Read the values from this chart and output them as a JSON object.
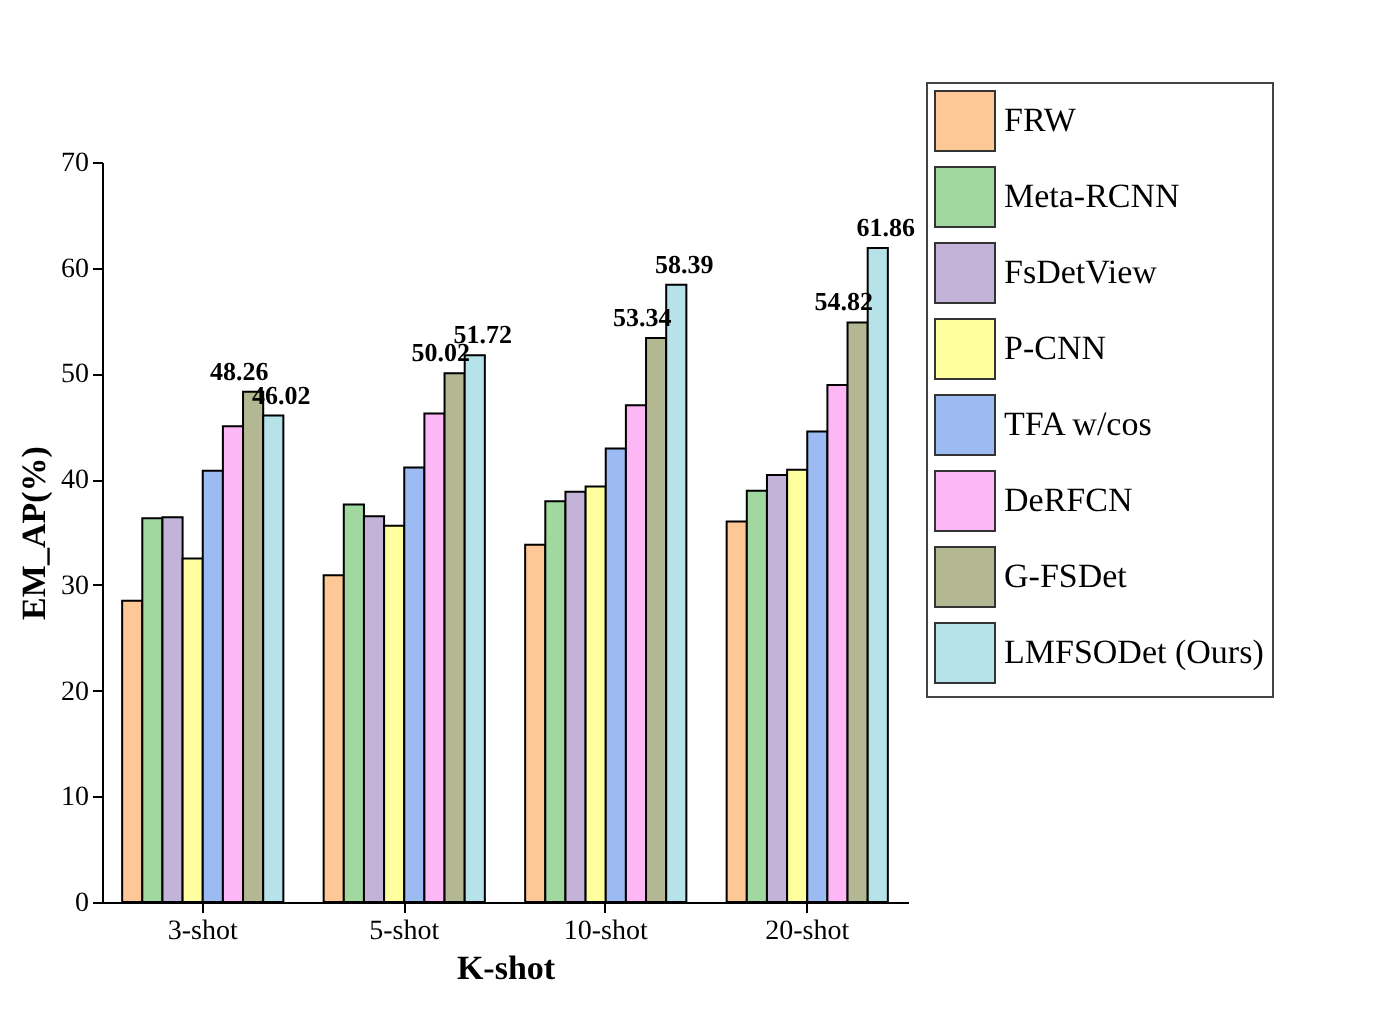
{
  "chart_data": {
    "type": "bar",
    "xlabel": "K-shot",
    "ylabel": "EM_AP(%)",
    "categories": [
      "3-shot",
      "5-shot",
      "10-shot",
      "20-shot"
    ],
    "series": [
      {
        "name": "FRW",
        "color": "#fdc896",
        "values": [
          28.5,
          30.9,
          33.8,
          36.0
        ]
      },
      {
        "name": "Meta-RCNN",
        "color": "#a0d8a0",
        "values": [
          36.3,
          37.6,
          37.9,
          38.9
        ]
      },
      {
        "name": "FsDetView",
        "color": "#c3b3d9",
        "values": [
          36.4,
          36.5,
          38.8,
          40.4
        ]
      },
      {
        "name": "P-CNN",
        "color": "#ffff9f",
        "values": [
          32.5,
          35.6,
          39.3,
          40.9
        ]
      },
      {
        "name": "TFA w/cos",
        "color": "#9bbbf2",
        "values": [
          40.8,
          41.1,
          42.9,
          44.5
        ]
      },
      {
        "name": "DeRFCN",
        "color": "#fdb6f6",
        "values": [
          45.0,
          46.2,
          47.0,
          48.9
        ]
      },
      {
        "name": "G-FSDet",
        "color": "#b3b893",
        "values": [
          48.26,
          50.02,
          53.34,
          54.82
        ],
        "value_labels": [
          "48.26",
          "50.02",
          "53.34",
          "54.82"
        ]
      },
      {
        "name": "LMFSODet (Ours)",
        "color": "#b6e3ea",
        "values": [
          46.02,
          51.72,
          58.39,
          61.86
        ],
        "value_labels": [
          "46.02",
          "51.72",
          "58.39",
          "61.86"
        ]
      }
    ],
    "ylim": [
      0,
      70
    ],
    "yticks": [
      0,
      10,
      20,
      30,
      40,
      50,
      60,
      70
    ],
    "grid": false,
    "legend": "top right"
  }
}
